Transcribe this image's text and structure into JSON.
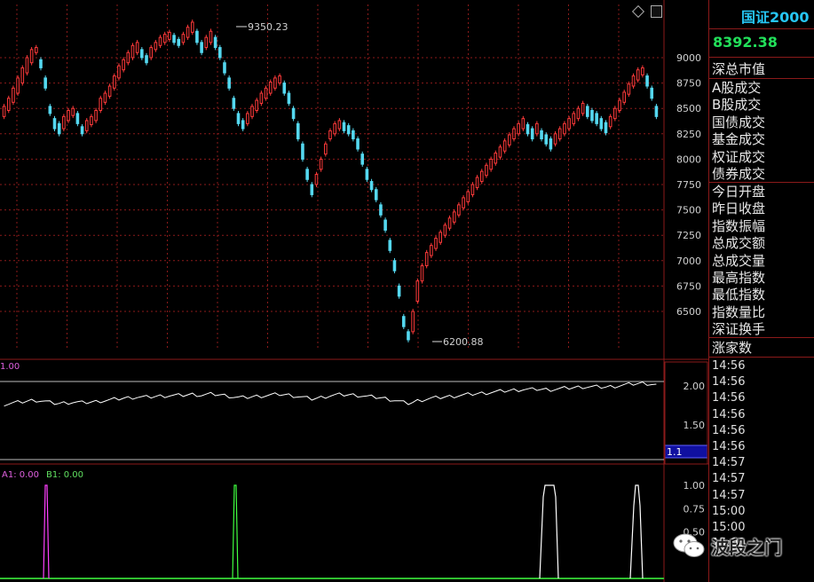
{
  "header": {
    "index_name": "国证2000",
    "index_value": "8392.38"
  },
  "sidebar": {
    "market_cap_label": "深总市值",
    "items": [
      "A股成交",
      "B股成交",
      "国债成交",
      "基金成交",
      "权证成交",
      "债券成交",
      "今日开盘",
      "昨日收盘",
      "指数振幅",
      "总成交额",
      "总成交量",
      "最高指数",
      "最低指数",
      "指数量比",
      "深证换手"
    ],
    "rising_label": "涨家数",
    "times": [
      "14:56",
      "14:56",
      "14:56",
      "14:56",
      "14:56",
      "14:56",
      "14:57",
      "14:57",
      "14:57",
      "15:00",
      "15:00",
      "15:00"
    ]
  },
  "price_axis": [
    "9000",
    "8750",
    "8500",
    "8250",
    "8000",
    "7750",
    "7500",
    "7250",
    "7000",
    "6750",
    "6500"
  ],
  "price_annotations": {
    "high": "9350.23",
    "low": "6200.88"
  },
  "indicator_panel": {
    "label": "1.00",
    "axis": [
      "2.00",
      "1.50"
    ],
    "current_box": "1.1"
  },
  "signal_panel": {
    "a1_label": "A1: 0.00",
    "b1_label": "B1: 0.00",
    "axis": [
      "1.00",
      "0.75",
      "0.50"
    ]
  },
  "watermark": {
    "text": "波段之门"
  },
  "colors": {
    "up": "#ff3a3a",
    "down": "#55d8f0",
    "grid": "#8b1a1a",
    "line": "#ffffff",
    "magenta": "#ff40ff",
    "green": "#40ff40",
    "cyan_title": "#26c5f3",
    "value_green": "#22e05a"
  },
  "chart_data": {
    "type": "candlestick",
    "y_range": [
      6100,
      9450
    ],
    "description_points": [
      [
        8420,
        8520
      ],
      [
        8480,
        8600
      ],
      [
        8560,
        8700
      ],
      [
        8650,
        8800
      ],
      [
        8750,
        8900
      ],
      [
        8850,
        9000
      ],
      [
        8950,
        9080
      ],
      [
        9050,
        9100
      ],
      [
        8900,
        8980
      ],
      [
        8700,
        8800
      ],
      [
        8450,
        8520
      ],
      [
        8300,
        8400
      ],
      [
        8250,
        8350
      ],
      [
        8300,
        8420
      ],
      [
        8380,
        8480
      ],
      [
        8430,
        8500
      ],
      [
        8350,
        8450
      ],
      [
        8250,
        8320
      ],
      [
        8280,
        8380
      ],
      [
        8340,
        8420
      ],
      [
        8380,
        8480
      ],
      [
        8480,
        8600
      ],
      [
        8560,
        8650
      ],
      [
        8620,
        8720
      ],
      [
        8700,
        8820
      ],
      [
        8800,
        8920
      ],
      [
        8880,
        8980
      ],
      [
        8950,
        9050
      ],
      [
        9000,
        9120
      ],
      [
        9050,
        9150
      ],
      [
        9000,
        9080
      ],
      [
        8950,
        9020
      ],
      [
        9000,
        9100
      ],
      [
        9080,
        9150
      ],
      [
        9120,
        9200
      ],
      [
        9150,
        9230
      ],
      [
        9180,
        9250
      ],
      [
        9150,
        9220
      ],
      [
        9120,
        9180
      ],
      [
        9150,
        9230
      ],
      [
        9200,
        9300
      ],
      [
        9250,
        9350
      ],
      [
        9150,
        9260
      ],
      [
        9050,
        9150
      ],
      [
        9100,
        9200
      ],
      [
        9150,
        9260
      ],
      [
        9100,
        9200
      ],
      [
        9000,
        9100
      ],
      [
        8850,
        8950
      ],
      [
        8700,
        8800
      ],
      [
        8500,
        8600
      ],
      [
        8350,
        8450
      ],
      [
        8300,
        8380
      ],
      [
        8350,
        8450
      ],
      [
        8420,
        8520
      ],
      [
        8480,
        8580
      ],
      [
        8550,
        8650
      ],
      [
        8600,
        8700
      ],
      [
        8650,
        8760
      ],
      [
        8700,
        8800
      ],
      [
        8750,
        8820
      ],
      [
        8650,
        8750
      ],
      [
        8550,
        8650
      ],
      [
        8400,
        8500
      ],
      [
        8200,
        8350
      ],
      [
        8000,
        8150
      ],
      [
        7800,
        7900
      ],
      [
        7650,
        7750
      ],
      [
        7750,
        7850
      ],
      [
        7900,
        8000
      ],
      [
        8050,
        8150
      ],
      [
        8200,
        8280
      ],
      [
        8250,
        8350
      ],
      [
        8300,
        8380
      ],
      [
        8280,
        8360
      ],
      [
        8250,
        8330
      ],
      [
        8200,
        8280
      ],
      [
        8100,
        8200
      ],
      [
        7950,
        8050
      ],
      [
        7800,
        7900
      ],
      [
        7700,
        7780
      ],
      [
        7600,
        7700
      ],
      [
        7450,
        7550
      ],
      [
        7300,
        7400
      ],
      [
        7100,
        7200
      ],
      [
        6900,
        7000
      ],
      [
        6650,
        6750
      ],
      [
        6350,
        6450
      ],
      [
        6220,
        6300
      ],
      [
        6300,
        6500
      ],
      [
        6600,
        6800
      ],
      [
        6800,
        6950
      ],
      [
        6950,
        7080
      ],
      [
        7050,
        7150
      ],
      [
        7120,
        7220
      ],
      [
        7180,
        7280
      ],
      [
        7250,
        7350
      ],
      [
        7320,
        7420
      ],
      [
        7380,
        7480
      ],
      [
        7450,
        7550
      ],
      [
        7520,
        7620
      ],
      [
        7580,
        7680
      ],
      [
        7650,
        7750
      ],
      [
        7720,
        7820
      ],
      [
        7780,
        7880
      ],
      [
        7840,
        7940
      ],
      [
        7900,
        8000
      ],
      [
        7960,
        8060
      ],
      [
        8020,
        8120
      ],
      [
        8080,
        8180
      ],
      [
        8140,
        8240
      ],
      [
        8200,
        8300
      ],
      [
        8250,
        8350
      ],
      [
        8300,
        8400
      ],
      [
        8250,
        8340
      ],
      [
        8200,
        8300
      ],
      [
        8250,
        8350
      ],
      [
        8200,
        8280
      ],
      [
        8150,
        8240
      ],
      [
        8100,
        8200
      ],
      [
        8150,
        8250
      ],
      [
        8200,
        8300
      ],
      [
        8250,
        8350
      ],
      [
        8300,
        8400
      ],
      [
        8350,
        8450
      ],
      [
        8400,
        8500
      ],
      [
        8450,
        8550
      ],
      [
        8420,
        8520
      ],
      [
        8380,
        8480
      ],
      [
        8350,
        8450
      ],
      [
        8300,
        8400
      ],
      [
        8260,
        8360
      ],
      [
        8320,
        8420
      ],
      [
        8400,
        8500
      ],
      [
        8480,
        8580
      ],
      [
        8560,
        8660
      ],
      [
        8640,
        8740
      ],
      [
        8720,
        8820
      ],
      [
        8780,
        8880
      ],
      [
        8830,
        8900
      ],
      [
        8720,
        8820
      ],
      [
        8600,
        8700
      ],
      [
        8420,
        8520
      ]
    ]
  }
}
